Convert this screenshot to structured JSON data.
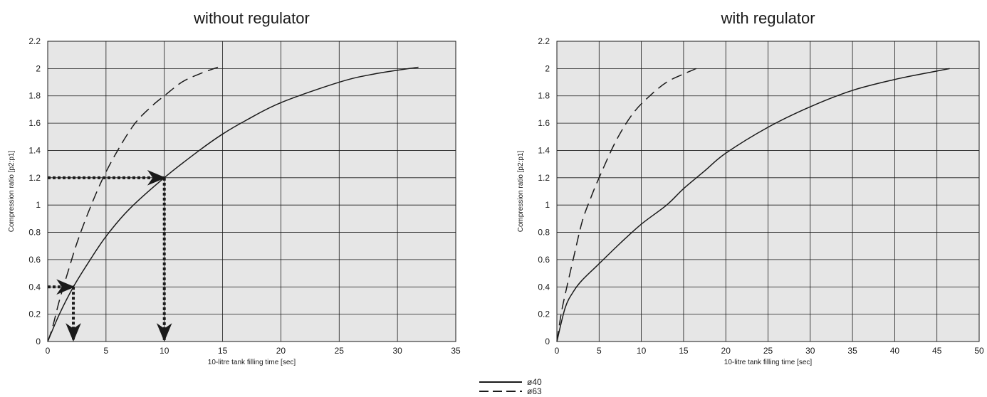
{
  "chart_data": [
    {
      "type": "line",
      "title": "without regulator",
      "xlabel": "10-litre tank filling time [sec]",
      "ylabel": "Compression ratio [p2:p1]",
      "xlim": [
        0,
        35
      ],
      "ylim": [
        0,
        2.2
      ],
      "xticks": [
        0,
        5,
        10,
        15,
        20,
        25,
        30,
        35
      ],
      "yticks": [
        0,
        0.2,
        0.4,
        0.6,
        0.8,
        1,
        1.2,
        1.4,
        1.6,
        1.8,
        2,
        2.2
      ],
      "grid": true,
      "series": [
        {
          "name": "ø40",
          "style": "solid",
          "x": [
            0,
            1,
            2.2,
            3.5,
            5,
            7,
            10,
            13,
            15,
            17,
            20,
            25,
            28,
            31.8
          ],
          "y": [
            0,
            0.2,
            0.4,
            0.58,
            0.77,
            0.97,
            1.2,
            1.4,
            1.52,
            1.62,
            1.75,
            1.9,
            1.96,
            2.01
          ]
        },
        {
          "name": "ø63",
          "style": "dashed",
          "x": [
            0,
            0.4,
            1,
            1.7,
            2.5,
            3.5,
            4.7,
            6,
            7.5,
            9,
            10,
            11.5,
            13,
            14.6
          ],
          "y": [
            0,
            0.1,
            0.3,
            0.5,
            0.72,
            0.95,
            1.19,
            1.4,
            1.6,
            1.73,
            1.8,
            1.9,
            1.96,
            2.01
          ]
        }
      ],
      "annotations": [
        {
          "type": "arrow-path",
          "points": [
            [
              0,
              0.4
            ],
            [
              2.2,
              0.4
            ],
            [
              2.2,
              0
            ]
          ]
        },
        {
          "type": "arrow-path",
          "points": [
            [
              0,
              1.2
            ],
            [
              10,
              1.2
            ],
            [
              10,
              0
            ]
          ]
        }
      ]
    },
    {
      "type": "line",
      "title": "with regulator",
      "xlabel": "10-litre tank filling time [sec]",
      "ylabel": "Compression ratio [p2:p1]",
      "xlim": [
        0,
        50
      ],
      "ylim": [
        0,
        2.2
      ],
      "xticks": [
        0,
        5,
        10,
        15,
        20,
        25,
        30,
        35,
        40,
        45,
        50
      ],
      "yticks": [
        0,
        0.2,
        0.4,
        0.6,
        0.8,
        1,
        1.2,
        1.4,
        1.6,
        1.8,
        2,
        2.2
      ],
      "grid": true,
      "series": [
        {
          "name": "ø40",
          "style": "solid",
          "x": [
            0,
            1,
            2,
            3,
            5,
            7.5,
            10,
            13,
            15,
            17.5,
            20,
            25,
            30,
            35,
            40,
            44,
            46.5
          ],
          "y": [
            0,
            0.25,
            0.37,
            0.45,
            0.57,
            0.72,
            0.86,
            1.0,
            1.12,
            1.25,
            1.38,
            1.57,
            1.72,
            1.84,
            1.92,
            1.97,
            2.0
          ]
        },
        {
          "name": "ø63",
          "style": "dashed",
          "x": [
            0,
            0.5,
            1,
            2,
            3,
            4,
            5,
            7,
            9,
            11,
            13,
            15,
            16.5
          ],
          "y": [
            0,
            0.2,
            0.35,
            0.62,
            0.88,
            1.05,
            1.2,
            1.47,
            1.67,
            1.8,
            1.9,
            1.96,
            2.0
          ]
        }
      ],
      "annotations": []
    }
  ],
  "legend": [
    {
      "label": "ø40",
      "style": "solid"
    },
    {
      "label": "ø63",
      "style": "dashed"
    }
  ],
  "colors": {
    "plot_background": "#e6e6e6",
    "line": "#1a1a1a",
    "grid": "#1a1a1a"
  }
}
